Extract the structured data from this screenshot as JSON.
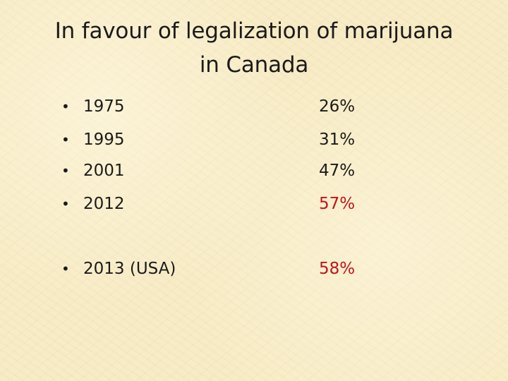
{
  "slide": {
    "title_line1": "In favour of legalization of marijuana",
    "title_line2": "in Canada",
    "bullet_glyph": "•",
    "rows": [
      {
        "year": "1975",
        "percent": "26%",
        "highlight": false
      },
      {
        "year": "1995",
        "percent": "31%",
        "highlight": false
      },
      {
        "year": "2001",
        "percent": "47%",
        "highlight": false
      },
      {
        "year": "2012",
        "percent": "57%",
        "highlight": true
      },
      {
        "year": "2013 (USA)",
        "percent": "58%",
        "highlight": true
      }
    ],
    "colors": {
      "background": "#f8ecc6",
      "text": "#1a1a1a",
      "highlight": "#c0141a"
    }
  }
}
